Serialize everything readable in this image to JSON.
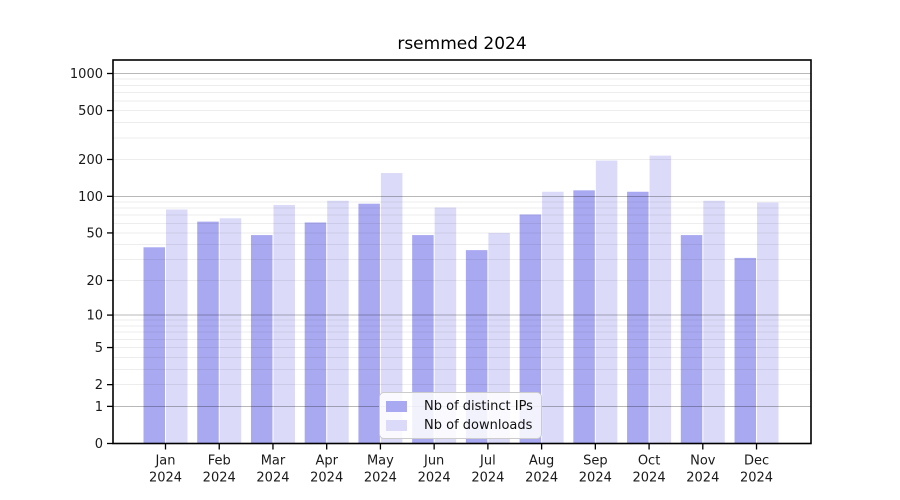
{
  "chart_data": {
    "type": "bar",
    "title": "rsemmed 2024",
    "categories": [
      "Jan",
      "Feb",
      "Mar",
      "Apr",
      "May",
      "Jun",
      "Jul",
      "Aug",
      "Sep",
      "Oct",
      "Nov",
      "Dec"
    ],
    "x_tick_year": "2024",
    "series": [
      {
        "name": "Nb of distinct IPs",
        "color": "#a9a9f2",
        "values": [
          38,
          62,
          48,
          61,
          87,
          48,
          36,
          71,
          112,
          109,
          48,
          31
        ]
      },
      {
        "name": "Nb of downloads",
        "color": "#dbdbf9",
        "values": [
          78,
          66,
          85,
          92,
          155,
          81,
          50,
          109,
          196,
          215,
          92,
          89
        ]
      }
    ],
    "yscale": "log10(value+1)",
    "ylim": [
      0,
      1000
    ],
    "yticks": [
      1000,
      500,
      200,
      100,
      50,
      20,
      10,
      5,
      2,
      1,
      0
    ],
    "minor_gridlines": [
      2,
      3,
      4,
      5,
      6,
      7,
      8,
      9,
      20,
      30,
      40,
      50,
      60,
      70,
      80,
      90,
      200,
      300,
      400,
      500,
      600,
      700,
      800,
      900
    ],
    "major_gridlines": [
      1,
      10,
      100,
      1000
    ],
    "grid": true,
    "legend_position": "lower center",
    "colors": {
      "background": "#ffffff",
      "spine": "#000000",
      "major_grid": "rgba(0,0,0,0.28)",
      "minor_grid": "rgba(0,0,0,0.07)",
      "tick_label": "#1a1a1a"
    }
  }
}
